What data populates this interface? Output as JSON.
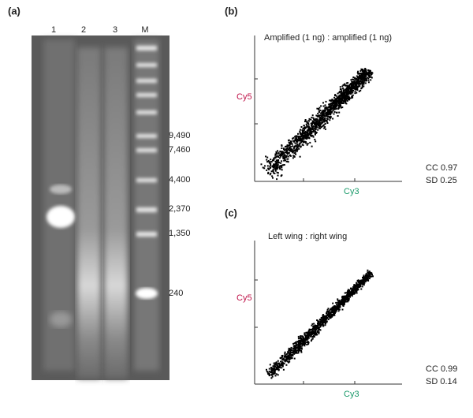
{
  "panels": {
    "a": {
      "label": "(a)",
      "lanes": [
        "1",
        "2",
        "3",
        "M"
      ],
      "markers": [
        "9,490",
        "7,460",
        "4,400",
        "2,370",
        "1,350",
        "240"
      ]
    },
    "b": {
      "label": "(b)",
      "title": "Amplified (1 ng) : amplified (1 ng)",
      "y_label": "Cy5",
      "x_label": "Cy3",
      "stats": [
        "CC 0.97",
        "SD 0.25"
      ]
    },
    "c": {
      "label": "(c)",
      "title": "Left wing : right wing",
      "y_label": "Cy5",
      "x_label": "Cy3",
      "stats": [
        "CC 0.99",
        "SD 0.14"
      ]
    }
  }
}
